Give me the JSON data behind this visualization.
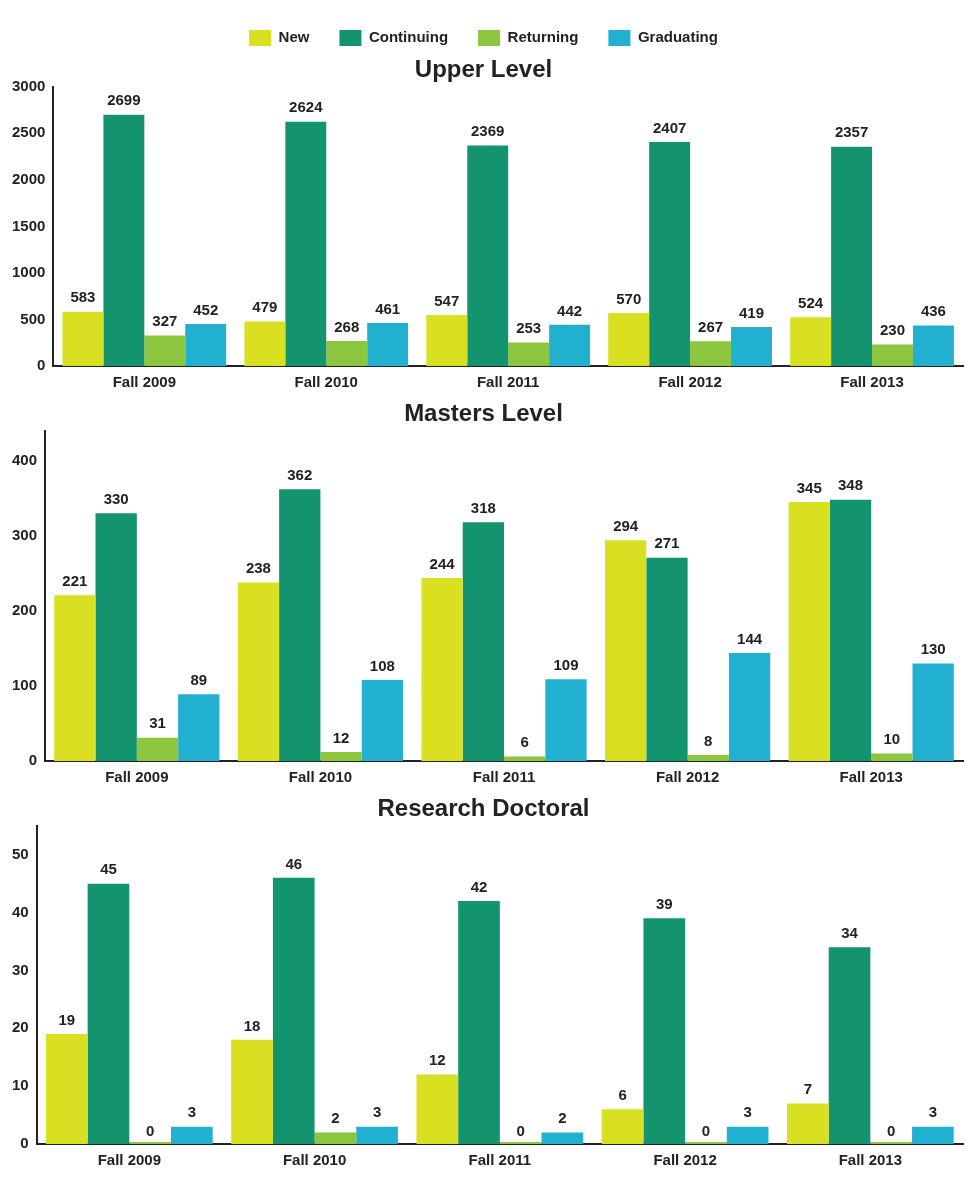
{
  "chart_data": [
    {
      "type": "bar",
      "title": "Upper Level",
      "categories": [
        "Fall 2009",
        "Fall 2010",
        "Fall 2011",
        "Fall 2012",
        "Fall 2013"
      ],
      "series": [
        {
          "name": "New",
          "color": "#d9e021",
          "values": [
            583,
            479,
            547,
            570,
            524
          ]
        },
        {
          "name": "Continuing",
          "color": "#13946f",
          "values": [
            2699,
            2624,
            2369,
            2407,
            2357
          ]
        },
        {
          "name": "Returning",
          "color": "#8cc63f",
          "values": [
            327,
            268,
            253,
            267,
            230
          ]
        },
        {
          "name": "Graduating",
          "color": "#22b0d0",
          "values": [
            452,
            461,
            442,
            419,
            436
          ]
        }
      ],
      "ylim": [
        0,
        3000
      ],
      "yticks": [
        0,
        500,
        {
          "value": 1000,
          "label": "1000"
        },
        {
          "value": 1500,
          "label": "1500"
        },
        {
          "value": 2000,
          "label": "2000"
        },
        {
          "value": 2500,
          "label": "2500"
        },
        {
          "value": 3000,
          "label": "3000"
        }
      ],
      "grid": false,
      "legend": "top",
      "data_labels": true
    },
    {
      "type": "bar",
      "title": "Masters Level",
      "categories": [
        "Fall 2009",
        "Fall 2010",
        "Fall 2011",
        "Fall 2012",
        "Fall 2013"
      ],
      "series": [
        {
          "color": "#d9e021",
          "values": [
            221,
            238,
            244,
            294,
            345
          ]
        },
        {
          "color": "#13946f",
          "values": [
            330,
            362,
            318,
            271,
            348
          ]
        },
        {
          "color": "#8cc63f",
          "values": [
            31,
            12,
            6,
            8,
            10
          ]
        },
        {
          "color": "#22b0d0",
          "values": [
            89,
            108,
            109,
            144,
            130
          ]
        }
      ],
      "ylim": [
        0,
        440
      ],
      "yticks": [
        0,
        100,
        200,
        300,
        400
      ],
      "grid": false,
      "data_labels": true
    },
    {
      "type": "bar",
      "title": "Research Doctoral",
      "categories": [
        "Fall 2009",
        "Fall 2010",
        "Fall 2011",
        "Fall 2012",
        "Fall 2013"
      ],
      "series": [
        {
          "color": "#d9e021",
          "values": [
            19,
            18,
            12,
            6,
            7
          ]
        },
        {
          "color": "#13946f",
          "values": [
            45,
            46,
            42,
            39,
            34
          ]
        },
        {
          "color": "#8cc63f",
          "values": [
            0,
            2,
            0,
            0,
            0
          ]
        },
        {
          "color": "#22b0d0",
          "values": [
            3,
            3,
            2,
            3,
            3
          ]
        }
      ],
      "ylim": [
        0,
        55
      ],
      "yticks": [
        0,
        10,
        20,
        30,
        40,
        50
      ],
      "grid": false,
      "data_labels": true
    }
  ]
}
